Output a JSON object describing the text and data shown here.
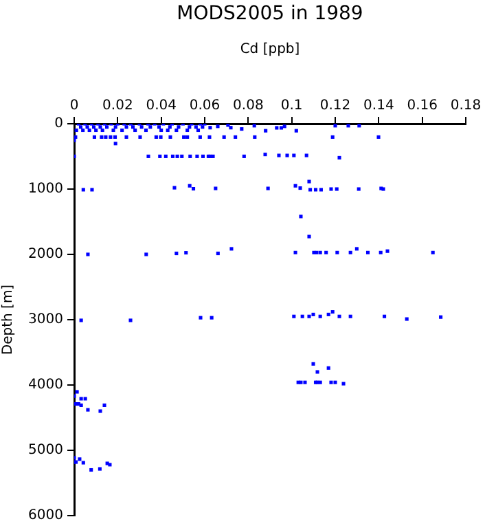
{
  "chart_data": {
    "type": "scatter",
    "title": "MODS2005 in 1989",
    "xlabel": "Cd [ppb]",
    "ylabel": "Depth [m]",
    "xlim": [
      0,
      0.18
    ],
    "xticks": [
      0,
      0.02,
      0.04,
      0.06,
      0.08,
      0.1,
      0.12,
      0.14,
      0.16,
      0.18
    ],
    "ylim": [
      6000,
      0
    ],
    "yticks": [
      0,
      1000,
      2000,
      3000,
      4000,
      5000,
      6000
    ],
    "grid": false,
    "legend": false,
    "marker": "square",
    "series": [
      {
        "color": "#0000ff",
        "x": [
          0.002,
          0.005,
          0.008,
          0.011,
          0.014,
          0.017,
          0.02,
          0.023,
          0.026,
          0.03,
          0.034,
          0.037,
          0.041,
          0.045,
          0.05,
          0.054,
          0.058,
          0.06,
          0.003,
          0.006,
          0.009,
          0.012,
          0.015,
          0.019,
          0.024,
          0.027,
          0.031,
          0.035,
          0.039,
          0.044,
          0.048,
          0.053,
          0.056,
          0.059,
          0.001,
          0.004,
          0.007,
          0.01,
          0.013,
          0.018,
          0.022,
          0.028,
          0.033,
          0.04,
          0.043,
          0.047,
          0.052,
          0.057,
          0.0625,
          0.066,
          0.0707,
          0.072,
          0.077,
          0.0828,
          0.088,
          0.0931,
          0.0952,
          0.0967,
          0.1021,
          0.12,
          0.126,
          0.131,
          0.0006,
          0.0093,
          0.0126,
          0.0145,
          0.0167,
          0.0188,
          0.024,
          0.0303,
          0.0377,
          0.0398,
          0.0442,
          0.0504,
          0.052,
          0.0579,
          0.0622,
          0.0689,
          0.0741,
          0.083,
          0.1188,
          0.1399,
          0,
          0.019,
          0,
          0.0341,
          0.0394,
          0.0421,
          0.0453,
          0.0474,
          0.0495,
          0.0533,
          0.0565,
          0.0592,
          0.0617,
          0.0625,
          0.0638,
          0.0781,
          0.0878,
          0.0941,
          0.0979,
          0.101,
          0.1068,
          0.1219,
          0.0042,
          0.0082,
          0.0461,
          0.0531,
          0.0548,
          0.065,
          0.0891,
          0.1017,
          0.1039,
          0.108,
          0.1085,
          0.111,
          0.1135,
          0.1181,
          0.1207,
          0.1308,
          0.1411,
          0.1421,
          0.1042,
          0.108,
          0.0063,
          0.0331,
          0.047,
          0.0514,
          0.0661,
          0.0723,
          0.1017,
          0.1102,
          0.1114,
          0.1131,
          0.1158,
          0.1209,
          0.127,
          0.1299,
          0.135,
          0.1409,
          0.144,
          0.1649,
          0.0032,
          0.0259,
          0.0581,
          0.0632,
          0.101,
          0.1049,
          0.108,
          0.1099,
          0.1131,
          0.1169,
          0.1188,
          0.1219,
          0.127,
          0.1426,
          0.1529,
          0.1685,
          0.1099,
          0.1169,
          0.1118,
          0.103,
          0.1042,
          0.1061,
          0.111,
          0.1118,
          0.1131,
          0.1181,
          0.12,
          0.1238,
          0.0013,
          0,
          0.0032,
          0.0051,
          0.0008,
          0.002,
          0.0032,
          0.0139,
          0.0063,
          0.012,
          0,
          0.0025,
          0,
          0.0008,
          0.0042,
          0.0152,
          0.0164,
          0.0118,
          0.0078
        ],
        "values": [
          0,
          0,
          0,
          0,
          0,
          0,
          0,
          0,
          0,
          0,
          0,
          0,
          0,
          0,
          0,
          0,
          0,
          0,
          50,
          50,
          50,
          50,
          50,
          50,
          50,
          50,
          50,
          50,
          50,
          50,
          50,
          50,
          50,
          50,
          100,
          100,
          100,
          100,
          100,
          100,
          100,
          100,
          100,
          100,
          100,
          100,
          100,
          100,
          60,
          40,
          20,
          60,
          80,
          30,
          107,
          63,
          63,
          40,
          107,
          30,
          30,
          30,
          204,
          204,
          204,
          204,
          204,
          204,
          204,
          204,
          204,
          204,
          204,
          204,
          204,
          204,
          204,
          204,
          204,
          204,
          204,
          204,
          253,
          303,
          499,
          499,
          499,
          499,
          499,
          499,
          499,
          499,
          499,
          499,
          499,
          499,
          499,
          499,
          470,
          485,
          485,
          485,
          485,
          520,
          1010,
          1010,
          980,
          950,
          995,
          990,
          990,
          950,
          985,
          885,
          1010,
          1010,
          1010,
          1000,
          1000,
          1000,
          990,
          1000,
          1420,
          1727,
          2000,
          2000,
          1985,
          1975,
          1985,
          1915,
          1972,
          1972,
          1972,
          1972,
          1972,
          1972,
          1972,
          1915,
          1972,
          1972,
          1950,
          1972,
          3010,
          3010,
          2970,
          2970,
          2950,
          2950,
          2950,
          2920,
          2950,
          2920,
          2880,
          2950,
          2950,
          2950,
          2990,
          2960,
          3677,
          3740,
          3800,
          3960,
          3960,
          3960,
          3960,
          3960,
          3960,
          3960,
          3960,
          3980,
          4105,
          4170,
          4210,
          4210,
          4290,
          4290,
          4310,
          4310,
          4380,
          4400,
          5115,
          5135,
          5180,
          5180,
          5190,
          5200,
          5220,
          5285,
          5300
        ]
      }
    ]
  }
}
